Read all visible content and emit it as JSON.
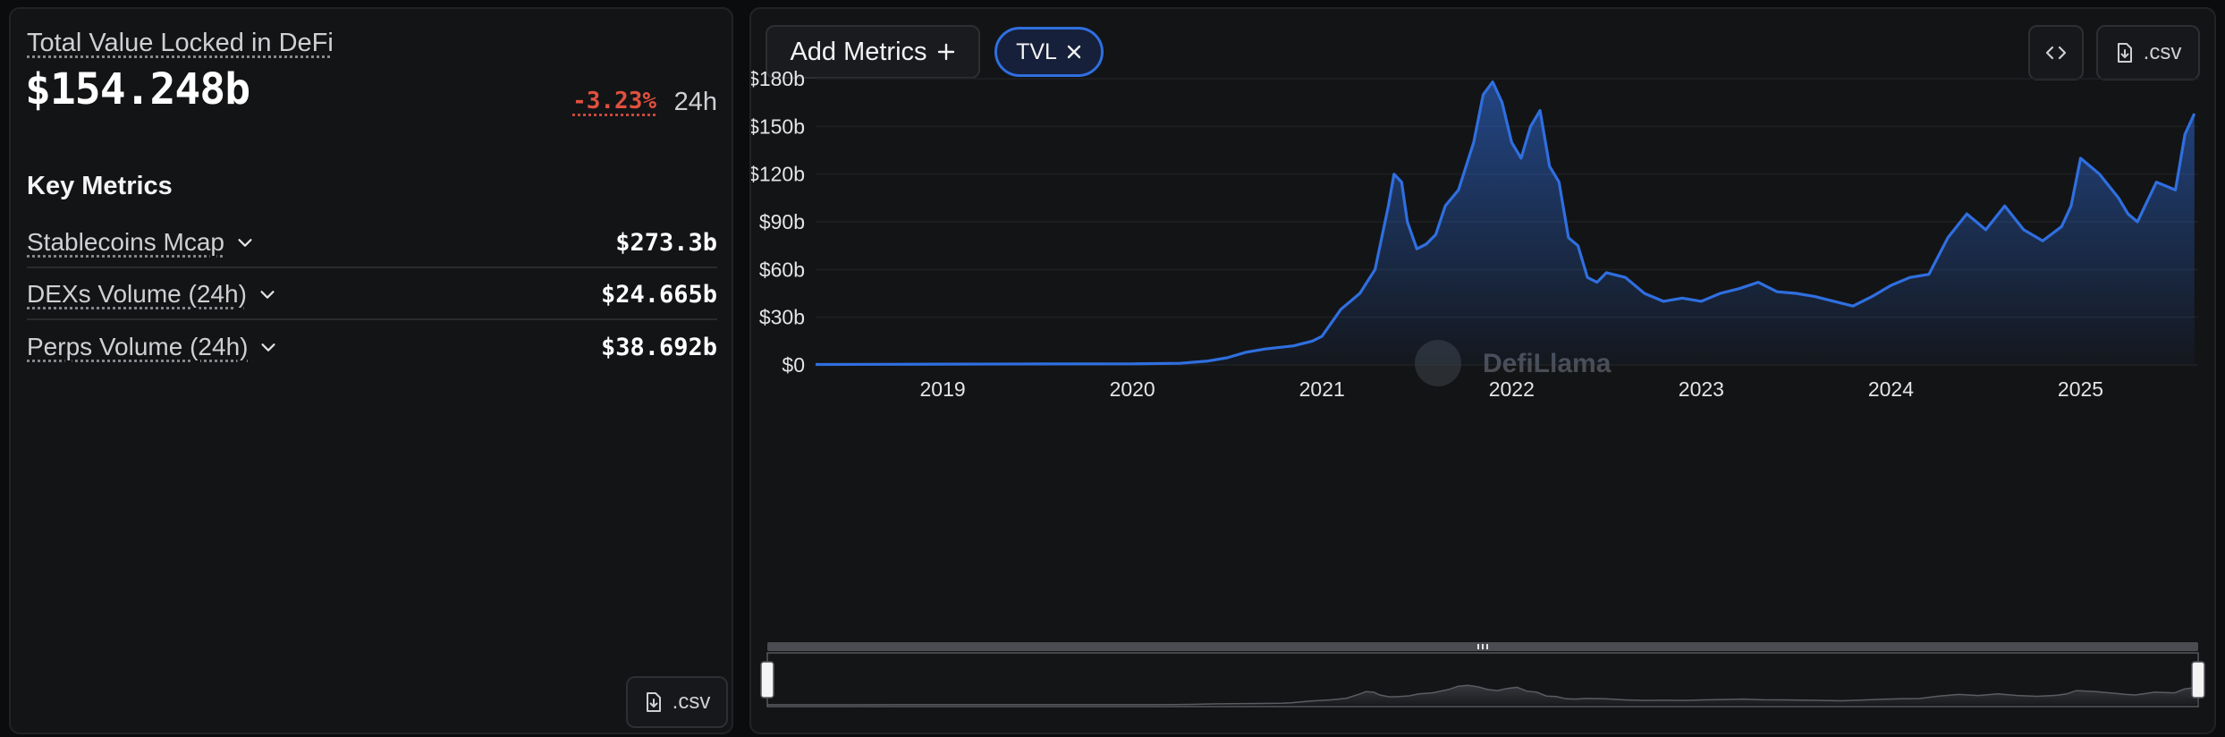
{
  "left": {
    "title": "Total Value Locked in DeFi",
    "value": "$154.248b",
    "change": "-3.23%",
    "period": "24h",
    "key_metrics_title": "Key Metrics",
    "metrics": [
      {
        "label": "Stablecoins Mcap",
        "value": "$273.3b"
      },
      {
        "label": "DEXs Volume (24h)",
        "value": "$24.665b"
      },
      {
        "label": "Perps Volume (24h)",
        "value": "$38.692b"
      }
    ],
    "csv_label": ".csv"
  },
  "toolbar": {
    "add_metrics_label": "Add Metrics",
    "chip_label": "TVL",
    "csv_label": ".csv"
  },
  "colors": {
    "line": "#2f6fe0",
    "negative": "#e0503f"
  },
  "watermark": "DefiLlama",
  "chart_data": {
    "type": "area",
    "series": [
      {
        "x": [
          2018.33,
          2018.7,
          2019.0,
          2019.5,
          2020.0,
          2020.25,
          2020.4,
          2020.5,
          2020.6,
          2020.7,
          2020.85,
          2020.95,
          2021.0,
          2021.1,
          2021.2,
          2021.28,
          2021.35,
          2021.38,
          2021.42,
          2021.45,
          2021.5,
          2021.55,
          2021.6,
          2021.65,
          2021.72,
          2021.8,
          2021.85,
          2021.9,
          2021.95,
          2022.0,
          2022.05,
          2022.1,
          2022.15,
          2022.2,
          2022.25,
          2022.3,
          2022.35,
          2022.4,
          2022.45,
          2022.5,
          2022.6,
          2022.7,
          2022.8,
          2022.9,
          2023.0,
          2023.1,
          2023.2,
          2023.3,
          2023.4,
          2023.5,
          2023.6,
          2023.7,
          2023.8,
          2023.9,
          2024.0,
          2024.1,
          2024.2,
          2024.3,
          2024.4,
          2024.5,
          2024.6,
          2024.7,
          2024.8,
          2024.9,
          2024.95,
          2025.0,
          2025.1,
          2025.2,
          2025.25,
          2025.3,
          2025.4,
          2025.5,
          2025.55,
          2025.6
        ],
        "values": [
          0.3,
          0.4,
          0.5,
          0.6,
          0.7,
          1.0,
          2.5,
          4.5,
          8.0,
          10.0,
          12.0,
          15.0,
          18.0,
          35.0,
          45.0,
          60.0,
          100.0,
          120.0,
          115.0,
          90.0,
          73.0,
          76.0,
          82.0,
          100.0,
          110.0,
          140.0,
          170.0,
          178.0,
          165.0,
          140.0,
          130.0,
          150.0,
          160.0,
          125.0,
          115.0,
          80.0,
          75.0,
          55.0,
          52.0,
          58.0,
          55.0,
          45.0,
          40.0,
          42.0,
          40.0,
          45.0,
          48.0,
          52.0,
          46.0,
          45.0,
          43.0,
          40.0,
          37.0,
          43.0,
          50.0,
          55.0,
          57.0,
          80.0,
          95.0,
          85.0,
          100.0,
          85.0,
          78.0,
          87.0,
          100.0,
          130.0,
          120.0,
          105.0,
          95.0,
          90.0,
          115.0,
          110.0,
          145.0,
          158.0
        ]
      }
    ],
    "x_ticks": [
      "2019",
      "2020",
      "2021",
      "2022",
      "2023",
      "2024",
      "2025"
    ],
    "x_tick_values": [
      2019,
      2020,
      2021,
      2022,
      2023,
      2024,
      2025
    ],
    "y_ticks": [
      "$0",
      "$30b",
      "$60b",
      "$90b",
      "$120b",
      "$150b",
      "$180b"
    ],
    "y_tick_values": [
      0,
      30,
      60,
      90,
      120,
      150,
      180
    ],
    "ylim": [
      0,
      180
    ],
    "xlim": [
      2018.33,
      2025.62
    ],
    "grid": true,
    "legend": "none"
  }
}
